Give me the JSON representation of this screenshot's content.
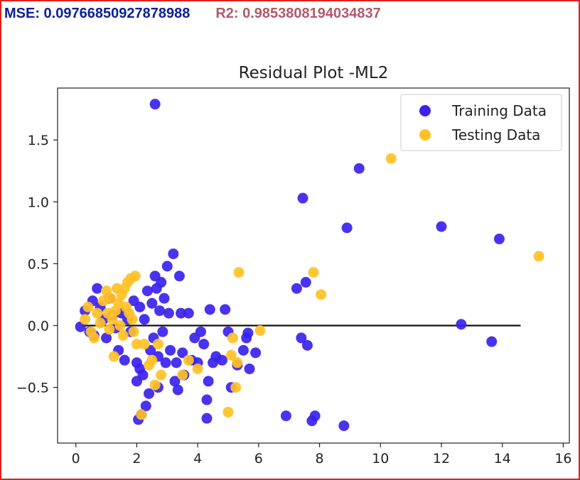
{
  "metrics": {
    "mse_text": "MSE: 0.09766850927878988",
    "r2_text": "R2: 0.9853808194034837"
  },
  "colors": {
    "border": "#e0221f",
    "mse": "#0c1e9c",
    "r2": "#b5586a",
    "training": "#3a22ee",
    "testing": "#ffc125",
    "zero_line": "#111111"
  },
  "chart_data": {
    "type": "scatter",
    "title": "Residual Plot -ML2",
    "xlabel": "",
    "ylabel": "",
    "xlim": [
      -0.6,
      16.2
    ],
    "ylim": [
      -0.95,
      1.92
    ],
    "xticks": [
      0,
      2,
      4,
      6,
      8,
      10,
      12,
      14,
      16
    ],
    "yticks": [
      -0.5,
      0.0,
      0.5,
      1.0,
      1.5
    ],
    "grid": false,
    "legend_position": "top-right",
    "hline": {
      "y": 0,
      "xmin": 0.2,
      "xmax": 14.6
    },
    "series": [
      {
        "name": "Training Data",
        "color": "#3a22ee",
        "points": [
          [
            2.6,
            1.79
          ],
          [
            0.15,
            -0.01
          ],
          [
            0.3,
            0.12
          ],
          [
            0.45,
            -0.05
          ],
          [
            0.55,
            0.2
          ],
          [
            0.6,
            -0.08
          ],
          [
            0.7,
            0.3
          ],
          [
            0.8,
            0.15
          ],
          [
            0.9,
            0.05
          ],
          [
            1.0,
            -0.1
          ],
          [
            1.1,
            0.22
          ],
          [
            1.2,
            0.08
          ],
          [
            1.3,
            -0.02
          ],
          [
            1.4,
            -0.2
          ],
          [
            1.5,
            0.1
          ],
          [
            1.6,
            -0.28
          ],
          [
            1.7,
            0.05
          ],
          [
            1.8,
            -0.05
          ],
          [
            1.9,
            0.2
          ],
          [
            2.0,
            -0.45
          ],
          [
            2.0,
            -0.3
          ],
          [
            2.1,
            0.15
          ],
          [
            2.1,
            -0.35
          ],
          [
            2.2,
            -0.4
          ],
          [
            2.25,
            0.05
          ],
          [
            2.3,
            -0.65
          ],
          [
            2.35,
            0.28
          ],
          [
            2.4,
            -0.55
          ],
          [
            2.45,
            -0.2
          ],
          [
            2.5,
            0.18
          ],
          [
            2.55,
            -0.1
          ],
          [
            2.6,
            0.4
          ],
          [
            2.65,
            0.3
          ],
          [
            2.7,
            -0.25
          ],
          [
            2.75,
            0.12
          ],
          [
            2.8,
            0.35
          ],
          [
            2.85,
            -0.05
          ],
          [
            2.9,
            0.22
          ],
          [
            2.95,
            -0.3
          ],
          [
            3.0,
            0.48
          ],
          [
            3.05,
            0.1
          ],
          [
            3.1,
            -0.2
          ],
          [
            3.2,
            0.58
          ],
          [
            3.25,
            -0.45
          ],
          [
            3.3,
            -0.3
          ],
          [
            3.35,
            -0.52
          ],
          [
            3.4,
            0.4
          ],
          [
            3.45,
            0.1
          ],
          [
            3.5,
            -0.22
          ],
          [
            3.55,
            -0.4
          ],
          [
            3.7,
            0.1
          ],
          [
            3.8,
            -0.28
          ],
          [
            3.9,
            -0.1
          ],
          [
            4.0,
            -0.3
          ],
          [
            4.1,
            -0.05
          ],
          [
            4.2,
            -0.15
          ],
          [
            4.3,
            -0.6
          ],
          [
            4.3,
            -0.75
          ],
          [
            4.35,
            -0.45
          ],
          [
            4.4,
            0.13
          ],
          [
            4.5,
            -0.3
          ],
          [
            4.6,
            -0.25
          ],
          [
            4.8,
            -0.28
          ],
          [
            4.9,
            0.13
          ],
          [
            5.0,
            -0.05
          ],
          [
            5.1,
            -0.5
          ],
          [
            5.3,
            -0.32
          ],
          [
            5.5,
            -0.2
          ],
          [
            5.6,
            -0.1
          ],
          [
            5.65,
            -0.06
          ],
          [
            5.7,
            -0.35
          ],
          [
            5.9,
            -0.22
          ],
          [
            6.9,
            -0.73
          ],
          [
            7.25,
            0.3
          ],
          [
            7.4,
            -0.1
          ],
          [
            7.45,
            1.03
          ],
          [
            7.55,
            0.35
          ],
          [
            7.6,
            -0.16
          ],
          [
            7.75,
            -0.77
          ],
          [
            7.85,
            -0.73
          ],
          [
            8.8,
            -0.81
          ],
          [
            8.9,
            0.79
          ],
          [
            9.3,
            1.27
          ],
          [
            12.0,
            0.8
          ],
          [
            12.65,
            0.01
          ],
          [
            13.65,
            -0.13
          ],
          [
            13.9,
            0.7
          ],
          [
            2.05,
            -0.76
          ],
          [
            2.15,
            -0.72
          ],
          [
            2.7,
            -0.5
          ]
        ]
      },
      {
        "name": "Testing Data",
        "color": "#ffc125",
        "points": [
          [
            0.3,
            0.05
          ],
          [
            0.4,
            0.15
          ],
          [
            0.5,
            -0.05
          ],
          [
            0.6,
            -0.1
          ],
          [
            0.7,
            0.1
          ],
          [
            0.8,
            0.02
          ],
          [
            0.9,
            0.2
          ],
          [
            1.0,
            0.28
          ],
          [
            1.05,
            0.1
          ],
          [
            1.1,
            -0.03
          ],
          [
            1.15,
            0.22
          ],
          [
            1.2,
            0.05
          ],
          [
            1.25,
            -0.25
          ],
          [
            1.3,
            0.12
          ],
          [
            1.35,
            0.3
          ],
          [
            1.4,
            0.18
          ],
          [
            1.45,
            0.0
          ],
          [
            1.5,
            0.25
          ],
          [
            1.55,
            -0.08
          ],
          [
            1.6,
            0.3
          ],
          [
            1.65,
            0.15
          ],
          [
            1.7,
            0.35
          ],
          [
            1.75,
            0.1
          ],
          [
            1.8,
            0.38
          ],
          [
            1.85,
            0.05
          ],
          [
            1.9,
            -0.05
          ],
          [
            1.95,
            0.4
          ],
          [
            2.0,
            -0.15
          ],
          [
            2.15,
            -0.72
          ],
          [
            2.25,
            -0.15
          ],
          [
            2.4,
            -0.32
          ],
          [
            2.5,
            -0.28
          ],
          [
            2.6,
            -0.48
          ],
          [
            2.7,
            -0.15
          ],
          [
            2.8,
            -0.4
          ],
          [
            3.5,
            -0.4
          ],
          [
            3.7,
            -0.28
          ],
          [
            4.0,
            -0.35
          ],
          [
            5.0,
            -0.7
          ],
          [
            5.1,
            -0.24
          ],
          [
            5.15,
            -0.1
          ],
          [
            5.25,
            -0.5
          ],
          [
            5.3,
            -0.3
          ],
          [
            5.35,
            0.43
          ],
          [
            6.05,
            -0.04
          ],
          [
            7.8,
            0.43
          ],
          [
            8.05,
            0.25
          ],
          [
            10.35,
            1.35
          ],
          [
            15.2,
            0.56
          ]
        ]
      }
    ]
  }
}
